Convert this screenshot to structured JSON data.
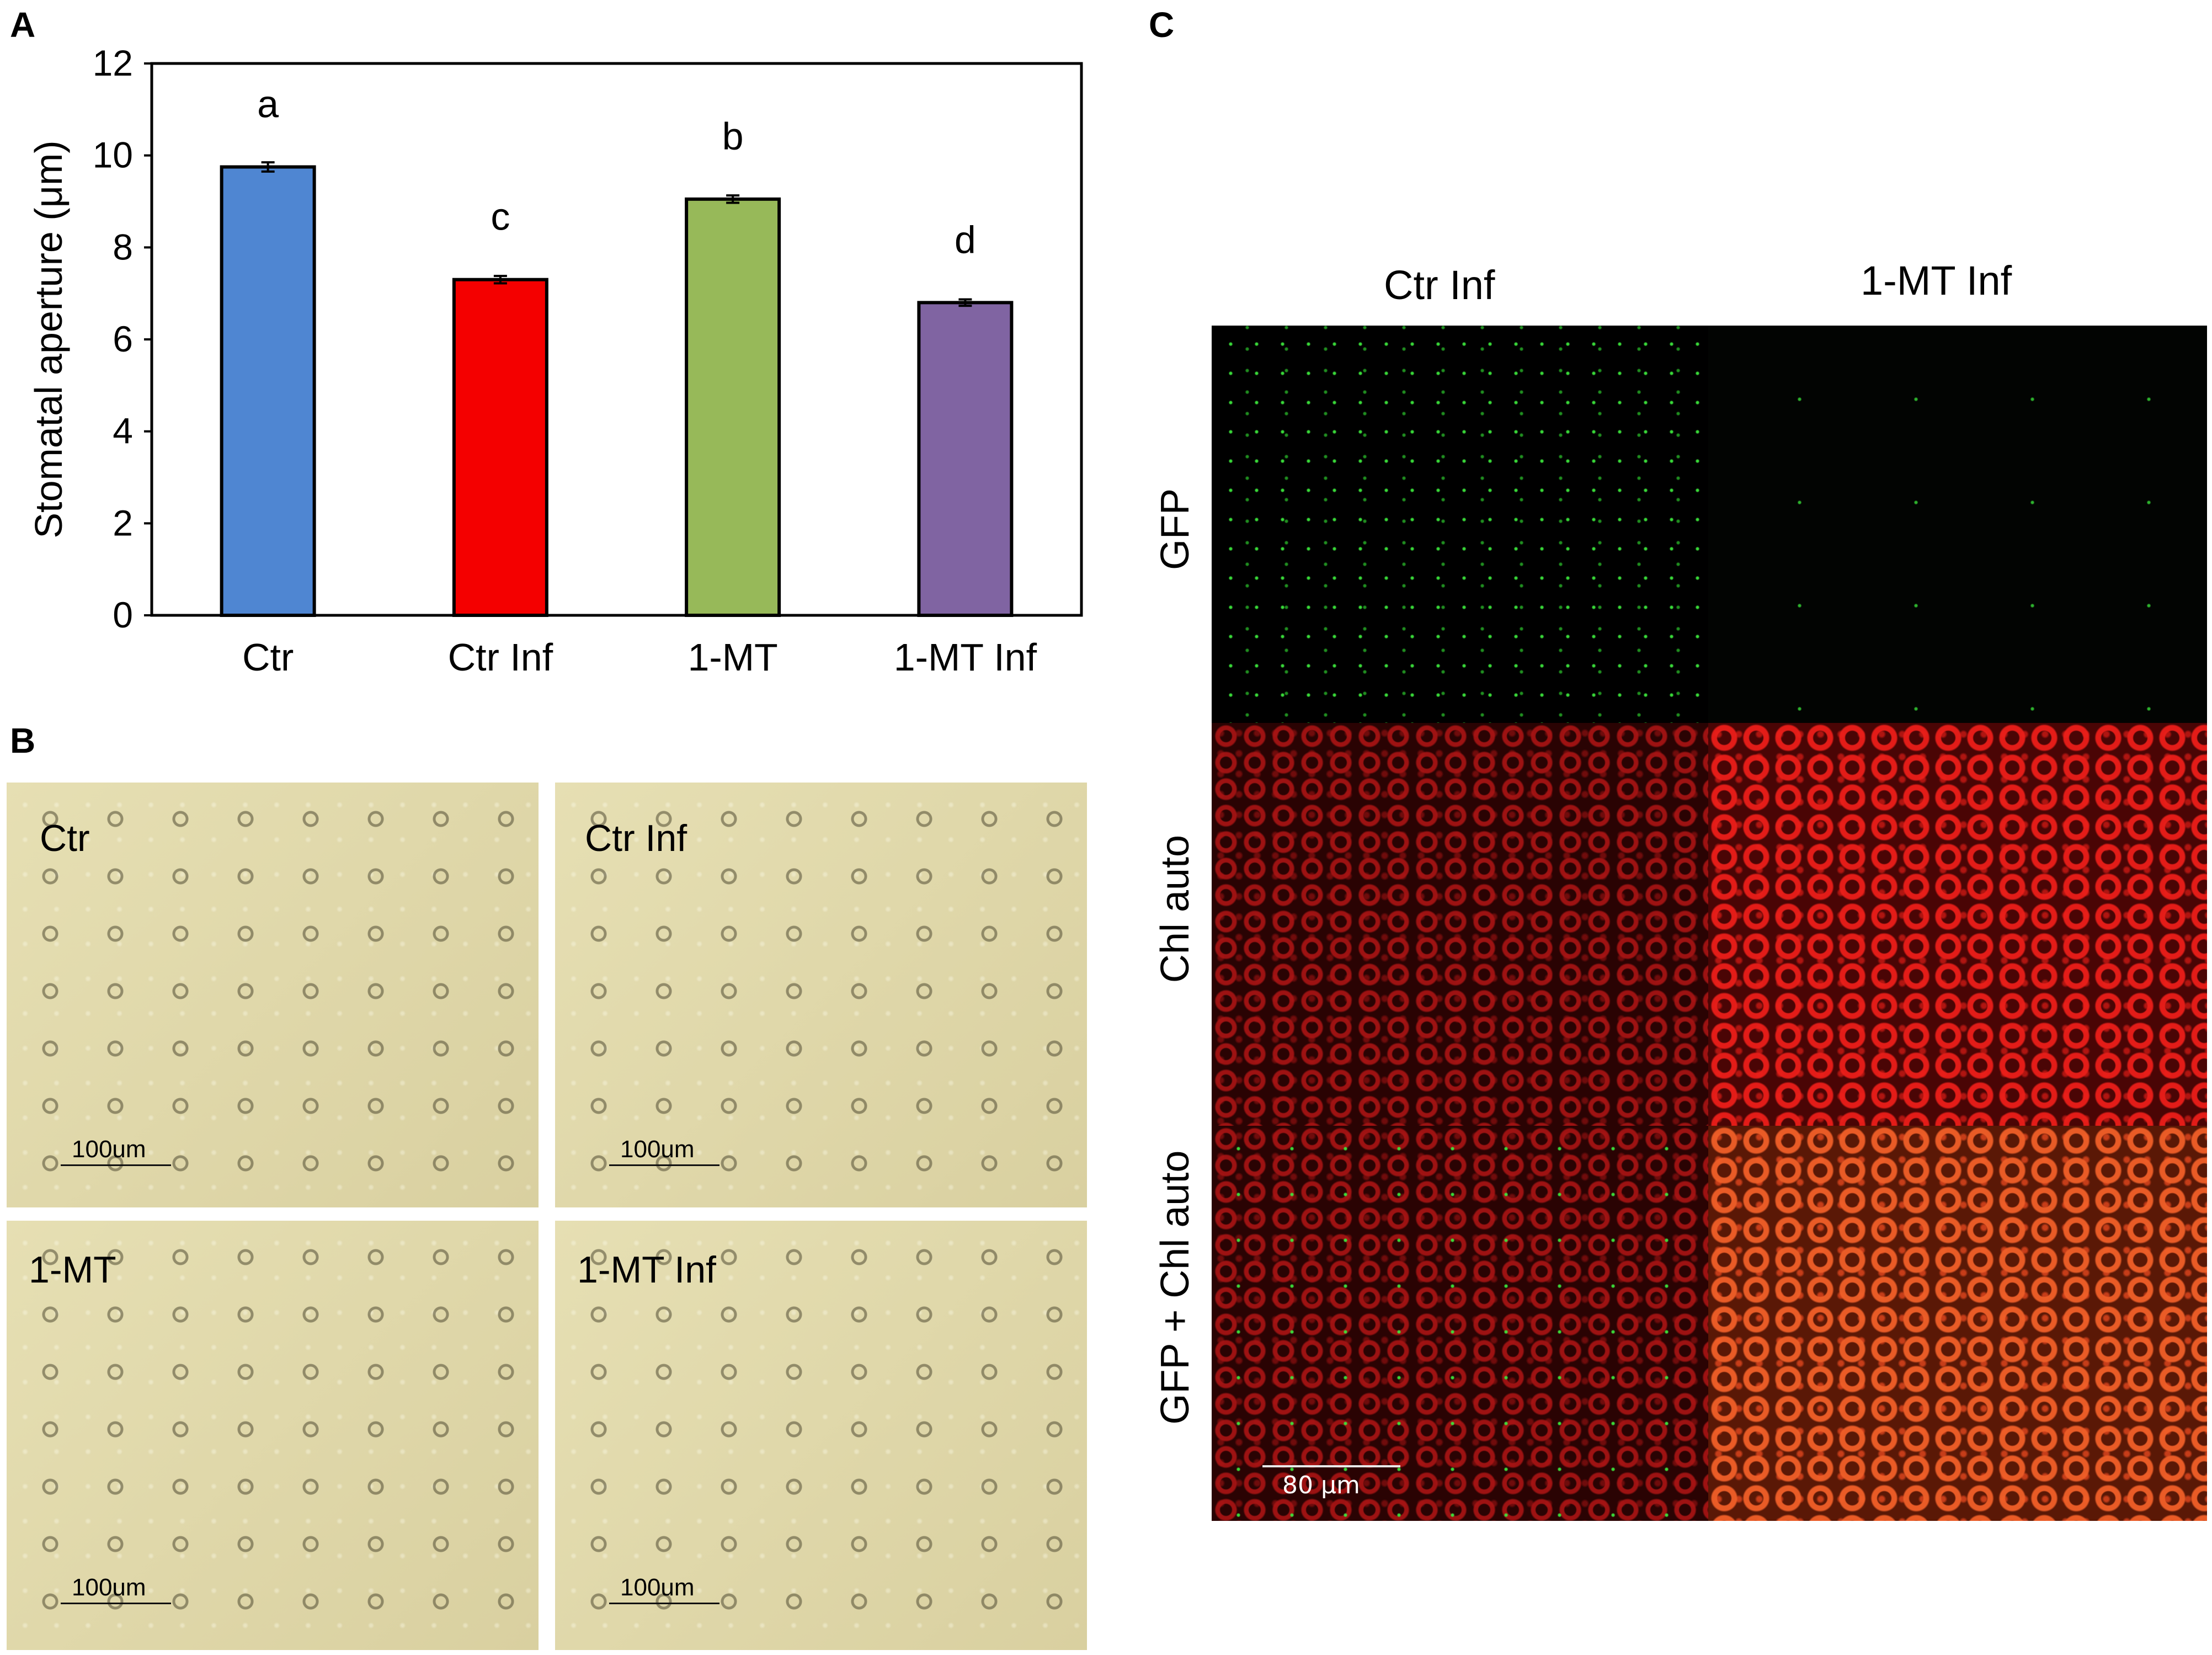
{
  "panels": {
    "A": "A",
    "B": "B",
    "C": "C"
  },
  "colors": {
    "bar_fills": [
      "#4f86d2",
      "#f40000",
      "#97b959",
      "#8064a2"
    ],
    "bar_outline": "#000000"
  },
  "chart_data": {
    "type": "bar",
    "categories": [
      "Ctr",
      "Ctr Inf",
      "1-MT",
      "1-MT Inf"
    ],
    "values": [
      9.75,
      7.3,
      9.05,
      6.8
    ],
    "errors": [
      0.1,
      0.08,
      0.08,
      0.07
    ],
    "significance_letters": [
      "a",
      "c",
      "b",
      "d"
    ],
    "ylabel": "Stomatal aperture (μm)",
    "ylim": [
      0,
      12
    ],
    "yticks": [
      "0",
      "2",
      "4",
      "6",
      "8",
      "10",
      "12"
    ],
    "grid": false,
    "legend": false
  },
  "micrographs": [
    {
      "label": "Ctr",
      "scale": "100um"
    },
    {
      "label": "Ctr Inf",
      "scale": "100um"
    },
    {
      "label": "1-MT",
      "scale": "100um"
    },
    {
      "label": "1-MT Inf",
      "scale": "100um"
    }
  ],
  "confocal": {
    "columns": [
      "Ctr Inf",
      "1-MT Inf"
    ],
    "rows": [
      "GFP",
      "Chl auto",
      "GFP + Chl auto"
    ],
    "scale": "80 μm"
  }
}
